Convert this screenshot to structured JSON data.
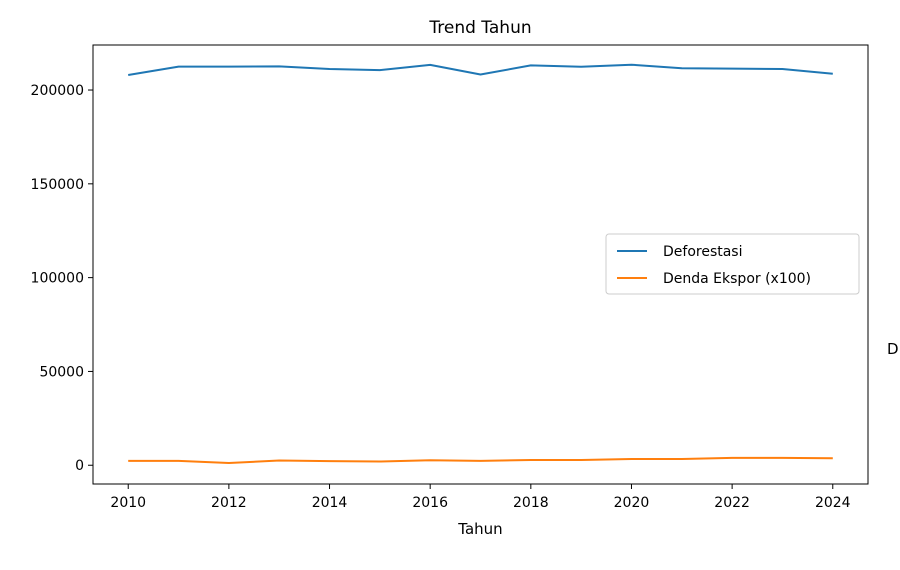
{
  "chart_data": {
    "type": "line",
    "title": "Trend Tahun",
    "xlabel": "Tahun",
    "ylabel": "",
    "x": [
      2010,
      2011,
      2012,
      2013,
      2014,
      2015,
      2016,
      2017,
      2018,
      2019,
      2020,
      2021,
      2022,
      2023,
      2024
    ],
    "xlim": [
      2009.3,
      2024.7
    ],
    "ylim": [
      -10000,
      224000
    ],
    "xticks": [
      "2010",
      "2012",
      "2014",
      "2016",
      "2018",
      "2020",
      "2022",
      "2024"
    ],
    "yticks": [
      "0",
      "50000",
      "100000",
      "150000",
      "200000"
    ],
    "grid": false,
    "legend_position": "center-right",
    "series": [
      {
        "name": "Deforestasi",
        "color": "#1f77b4",
        "values": [
          208000,
          212500,
          212500,
          212600,
          211200,
          210600,
          213400,
          208300,
          213100,
          212400,
          213500,
          211600,
          211400,
          211200,
          208700
        ]
      },
      {
        "name": "Denda Ekspor (x100)",
        "color": "#ff7f0e",
        "values": [
          2300,
          2300,
          1200,
          2500,
          2200,
          2000,
          2700,
          2300,
          2800,
          2800,
          3300,
          3300,
          3900,
          3900,
          3700
        ]
      }
    ]
  },
  "edge_text": "D"
}
